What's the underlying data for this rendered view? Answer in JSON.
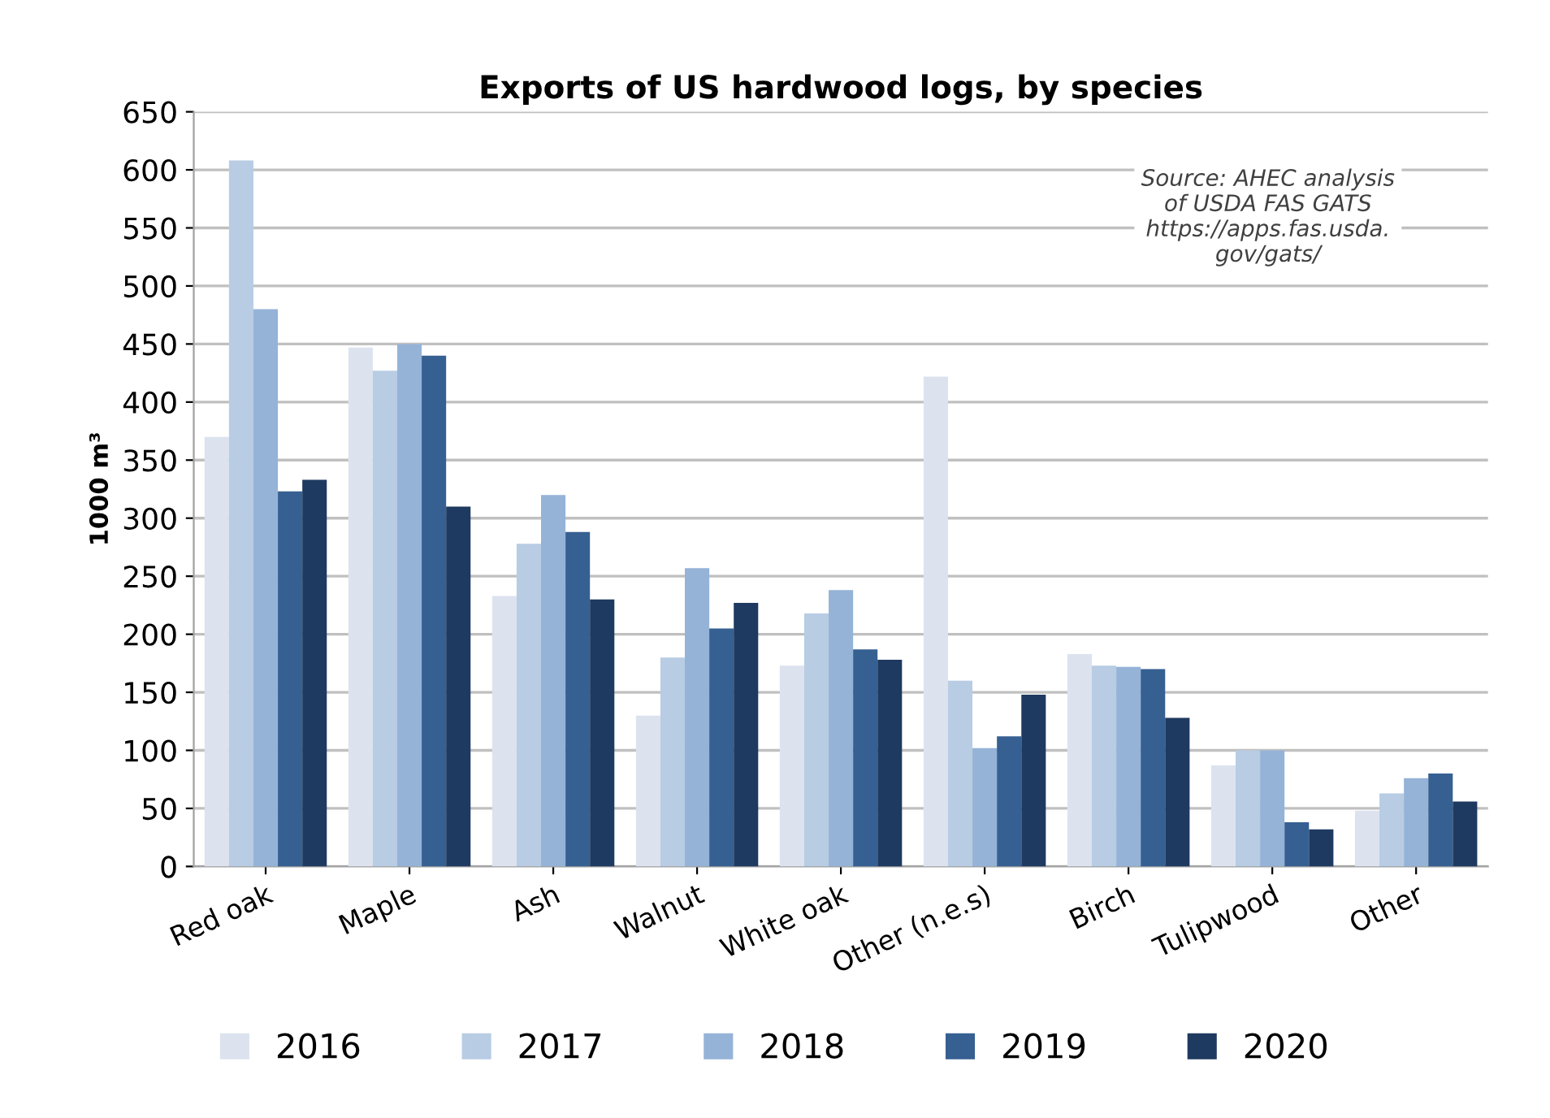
{
  "chart_data": {
    "type": "bar",
    "title": "Exports of US hardwood logs, by species",
    "ylabel": "1000 m³",
    "categories": [
      "Red oak",
      "Maple",
      "Ash",
      "Walnut",
      "White oak",
      "Other (n.e.s)",
      "Birch",
      "Tulipwood",
      "Other"
    ],
    "series": [
      {
        "name": "2016",
        "color": "#dce3ee",
        "values": [
          370,
          447,
          233,
          130,
          173,
          422,
          183,
          87,
          48
        ]
      },
      {
        "name": "2017",
        "color": "#b8cce4",
        "values": [
          608,
          427,
          278,
          180,
          218,
          160,
          173,
          100,
          63
        ]
      },
      {
        "name": "2018",
        "color": "#95b3d7",
        "values": [
          480,
          450,
          320,
          257,
          238,
          102,
          172,
          100,
          76
        ]
      },
      {
        "name": "2019",
        "color": "#366092",
        "values": [
          323,
          440,
          288,
          205,
          187,
          112,
          170,
          38,
          80
        ]
      },
      {
        "name": "2020",
        "color": "#1f3a60",
        "values": [
          333,
          310,
          230,
          227,
          178,
          148,
          128,
          32,
          56
        ]
      }
    ],
    "ylim": [
      0,
      650
    ],
    "yticks": [
      0,
      50,
      100,
      150,
      200,
      250,
      300,
      350,
      400,
      450,
      500,
      550,
      600,
      650
    ],
    "grid": "y",
    "legend": "bottom",
    "annotations": [
      "Source: AHEC analysis\nof USDA FAS GATS\nhttps://apps.fas.usda.\ngov/gats/"
    ]
  }
}
